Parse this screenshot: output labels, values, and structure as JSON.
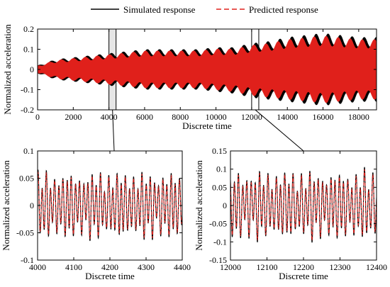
{
  "legend": {
    "placement": "top-center",
    "entries": [
      {
        "label": "Simulated response",
        "color": "#000000",
        "style": "solid"
      },
      {
        "label": "Predicted response",
        "color": "#e0201b",
        "style": "dashed"
      }
    ]
  },
  "chart_data": [
    {
      "id": "main",
      "type": "line",
      "title": "",
      "xlabel": "Discrete time",
      "ylabel": "Normalized acceleration",
      "xlim": [
        0,
        19000
      ],
      "ylim": [
        -0.2,
        0.2
      ],
      "xticks": [
        0,
        2000,
        4000,
        6000,
        8000,
        10000,
        12000,
        14000,
        16000,
        18000
      ],
      "yticks": [
        -0.2,
        -0.1,
        0,
        0.1,
        0.2
      ],
      "xtick_labels": [
        "0",
        "2000",
        "4000",
        "6000",
        "8000",
        "10000",
        "12000",
        "14000",
        "16000",
        "18000"
      ],
      "ytick_labels": [
        "-0.2",
        "-0.1",
        "0",
        "0.1",
        "0.2"
      ],
      "grid": false,
      "highlight_windows": [
        [
          4000,
          4400
        ],
        [
          12000,
          12400
        ]
      ],
      "envelope": {
        "x": [
          0,
          1000,
          2000,
          3000,
          4000,
          5000,
          6000,
          7000,
          8000,
          9000,
          10000,
          11000,
          12000,
          13000,
          14000,
          15000,
          16000,
          17000,
          18000,
          19000
        ],
        "upper": [
          0.02,
          0.05,
          0.06,
          0.07,
          0.08,
          0.09,
          0.1,
          0.1,
          0.1,
          0.1,
          0.11,
          0.11,
          0.13,
          0.14,
          0.16,
          0.17,
          0.18,
          0.17,
          0.16,
          0.16
        ],
        "lower": [
          -0.02,
          -0.05,
          -0.06,
          -0.07,
          -0.08,
          -0.09,
          -0.1,
          -0.1,
          -0.1,
          -0.1,
          -0.11,
          -0.12,
          -0.14,
          -0.15,
          -0.16,
          -0.17,
          -0.18,
          -0.17,
          -0.16,
          -0.16
        ]
      },
      "series": [
        {
          "name": "Simulated response",
          "color": "#000000"
        },
        {
          "name": "Predicted response",
          "color": "#e0201b"
        }
      ]
    },
    {
      "id": "zoom1",
      "type": "line",
      "title": "",
      "xlabel": "Discrete time",
      "ylabel": "Normalized acceleration",
      "xlim": [
        4000,
        4400
      ],
      "ylim": [
        -0.1,
        0.1
      ],
      "xticks": [
        4000,
        4100,
        4200,
        4300,
        4400
      ],
      "yticks": [
        -0.1,
        -0.05,
        0,
        0.05,
        0.1
      ],
      "xtick_labels": [
        "4000",
        "4100",
        "4200",
        "4300",
        "4400"
      ],
      "ytick_labels": [
        "-0.1",
        "-0.05",
        "0",
        "0.05",
        "0.1"
      ],
      "grid": false,
      "series": [
        {
          "name": "Simulated response",
          "color": "#000000"
        },
        {
          "name": "Predicted response",
          "color": "#e0201b"
        }
      ]
    },
    {
      "id": "zoom2",
      "type": "line",
      "title": "",
      "xlabel": "Discrete time",
      "ylabel": "Normalized acceleration",
      "xlim": [
        12000,
        12400
      ],
      "ylim": [
        -0.15,
        0.15
      ],
      "xticks": [
        12000,
        12100,
        12200,
        12300,
        12400
      ],
      "yticks": [
        -0.15,
        -0.1,
        -0.05,
        0,
        0.05,
        0.1,
        0.15
      ],
      "xtick_labels": [
        "12000",
        "12100",
        "12200",
        "12300",
        "12400"
      ],
      "ytick_labels": [
        "-0.15",
        "-0.1",
        "-0.05",
        "0",
        "0.05",
        "0.1",
        "0.15"
      ],
      "grid": false,
      "series": [
        {
          "name": "Simulated response",
          "color": "#000000"
        },
        {
          "name": "Predicted response",
          "color": "#e0201b"
        }
      ]
    }
  ]
}
